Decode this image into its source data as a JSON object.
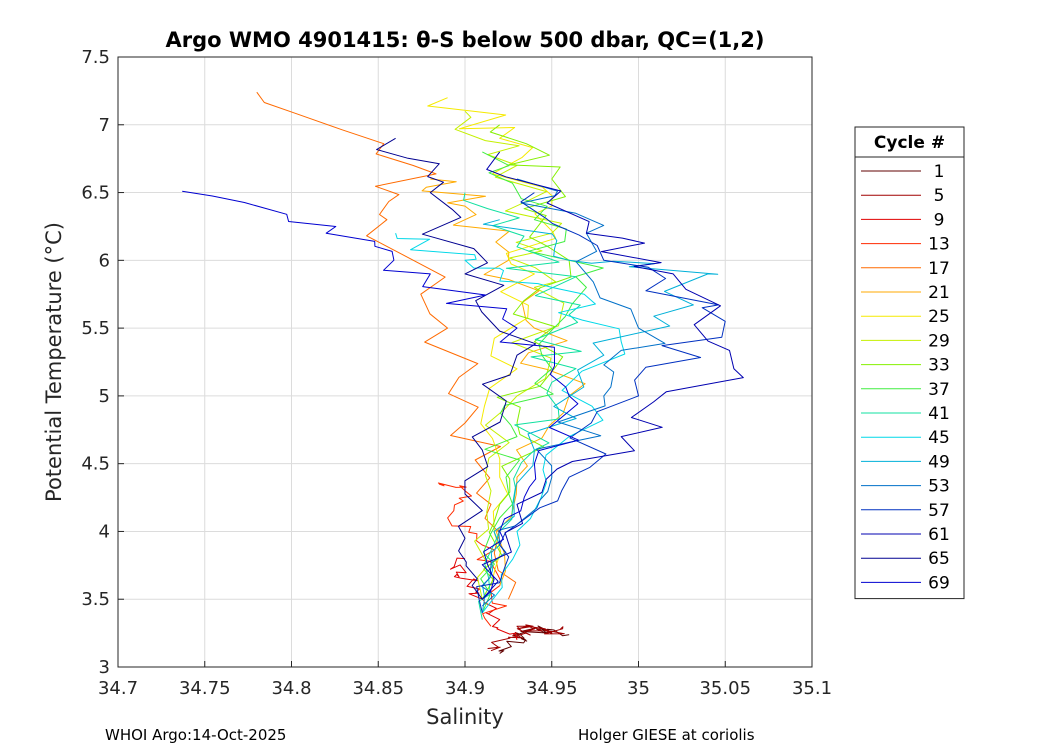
{
  "chart_data": {
    "type": "line",
    "title": "Argo WMO 4901415: θ-S below 500 dbar,  QC=(1,2)",
    "xlabel": "Salinity",
    "ylabel": "Potential Temperature (°C)",
    "xlim": [
      34.7,
      35.1
    ],
    "ylim": [
      3,
      7.5
    ],
    "grid": true,
    "xticks": [
      "34.7",
      "34.75",
      "34.8",
      "34.85",
      "34.9",
      "34.95",
      "35",
      "35.05",
      "35.1"
    ],
    "yticks": [
      "3",
      "3.5",
      "4",
      "4.5",
      "5",
      "5.5",
      "6",
      "6.5",
      "7",
      "7.5"
    ],
    "legend": {
      "title": "Cycle #",
      "position": "right-outside",
      "entries": [
        "1",
        "5",
        "9",
        "13",
        "17",
        "21",
        "25",
        "29",
        "33",
        "37",
        "41",
        "45",
        "49",
        "53",
        "57",
        "61",
        "65",
        "69"
      ],
      "colors": [
        "#600000",
        "#a00000",
        "#e00000",
        "#ff2a00",
        "#ff6a00",
        "#ffaa00",
        "#f5ea00",
        "#c4f000",
        "#84f000",
        "#40ee40",
        "#10e0a0",
        "#00d8e8",
        "#00b0d8",
        "#0070c8",
        "#0030c0",
        "#0000b0",
        "#000090",
        "#0000d0"
      ]
    },
    "series": [
      {
        "name": "1",
        "x": [
          34.92,
          34.935,
          34.93,
          34.945,
          34.95,
          34.96
        ],
        "y": [
          3.1,
          3.2,
          3.25,
          3.28,
          3.26,
          3.24
        ]
      },
      {
        "name": "5",
        "x": [
          34.915,
          34.925,
          34.935,
          34.93,
          34.94,
          34.95,
          34.955
        ],
        "y": [
          3.12,
          3.22,
          3.25,
          3.3,
          3.28,
          3.25,
          3.28
        ]
      },
      {
        "name": "9",
        "x": [
          34.9,
          34.895,
          34.905,
          34.91,
          34.92,
          34.93
        ],
        "y": [
          3.8,
          3.7,
          3.65,
          3.5,
          3.35,
          3.2
        ]
      },
      {
        "name": "13",
        "x": [
          34.885,
          34.9,
          34.89,
          34.91,
          34.92,
          34.915
        ],
        "y": [
          4.35,
          4.3,
          4.1,
          3.9,
          3.6,
          3.3
        ]
      },
      {
        "name": "17",
        "x": [
          34.78,
          34.87,
          34.855,
          34.89,
          34.9,
          34.915,
          34.925
        ],
        "y": [
          7.24,
          6.7,
          6.3,
          5.5,
          4.8,
          4.2,
          3.5
        ]
      },
      {
        "name": "21",
        "x": [
          34.88,
          34.9,
          34.925,
          34.94,
          34.96,
          34.93,
          34.92
        ],
        "y": [
          6.6,
          6.4,
          6.0,
          5.5,
          5.0,
          4.4,
          3.6
        ]
      },
      {
        "name": "25",
        "x": [
          34.89,
          34.92,
          34.95,
          34.94,
          34.93,
          34.92,
          34.915
        ],
        "y": [
          7.2,
          6.9,
          6.4,
          5.9,
          5.2,
          4.4,
          3.6
        ]
      },
      {
        "name": "29",
        "x": [
          34.9,
          34.93,
          34.95,
          34.94,
          34.93,
          34.915,
          34.91
        ],
        "y": [
          7.1,
          6.7,
          6.2,
          5.8,
          5.0,
          4.3,
          3.5
        ]
      },
      {
        "name": "33",
        "x": [
          34.92,
          34.95,
          34.96,
          34.94,
          34.93,
          34.92,
          34.91
        ],
        "y": [
          7.0,
          6.6,
          6.0,
          5.4,
          4.8,
          4.2,
          3.5
        ]
      },
      {
        "name": "37",
        "x": [
          34.91,
          34.94,
          34.97,
          34.95,
          34.93,
          34.92,
          34.91
        ],
        "y": [
          6.8,
          6.3,
          5.8,
          5.2,
          4.7,
          4.1,
          3.4
        ]
      },
      {
        "name": "41",
        "x": [
          34.9,
          34.93,
          34.96,
          34.95,
          34.94,
          34.92,
          34.91
        ],
        "y": [
          6.5,
          6.1,
          5.6,
          5.1,
          4.6,
          4.0,
          3.35
        ]
      },
      {
        "name": "45",
        "x": [
          34.86,
          34.9,
          34.95,
          34.99,
          34.96,
          34.93,
          34.91
        ],
        "y": [
          6.2,
          6.0,
          5.8,
          5.4,
          4.7,
          4.0,
          3.4
        ]
      },
      {
        "name": "49",
        "x": [
          34.92,
          34.96,
          35.04,
          34.98,
          34.94,
          34.92,
          34.91
        ],
        "y": [
          6.3,
          6.0,
          5.9,
          5.3,
          4.6,
          3.9,
          3.4
        ]
      },
      {
        "name": "53",
        "x": [
          34.93,
          34.97,
          35.0,
          34.98,
          34.95,
          34.92,
          34.91
        ],
        "y": [
          6.6,
          6.2,
          5.5,
          5.0,
          4.4,
          3.9,
          3.45
        ]
      },
      {
        "name": "57",
        "x": [
          34.94,
          34.98,
          35.05,
          35.0,
          34.96,
          34.92,
          34.91
        ],
        "y": [
          6.5,
          6.0,
          5.55,
          5.0,
          4.4,
          3.9,
          3.4
        ]
      },
      {
        "name": "61",
        "x": [
          34.92,
          34.97,
          35.02,
          35.055,
          34.99,
          34.93,
          34.91
        ],
        "y": [
          6.8,
          6.2,
          5.9,
          5.2,
          4.7,
          4.2,
          3.5
        ]
      },
      {
        "name": "65",
        "x": [
          34.86,
          34.88,
          34.9,
          34.93,
          34.91,
          34.9,
          34.91
        ],
        "y": [
          6.9,
          6.5,
          5.9,
          5.3,
          4.6,
          3.95,
          3.5
        ]
      },
      {
        "name": "69",
        "x": [
          34.737,
          34.82,
          34.88,
          34.93,
          34.96,
          34.94,
          34.92,
          34.91
        ],
        "y": [
          6.51,
          6.2,
          5.9,
          5.5,
          5.0,
          4.5,
          4.0,
          3.5
        ]
      }
    ]
  },
  "footer": {
    "left": "WHOI Argo:14-Oct-2025",
    "right": "Holger GIESE at coriolis"
  }
}
